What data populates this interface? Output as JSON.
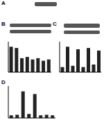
{
  "panel_labels": [
    "A",
    "B",
    "C",
    "D"
  ],
  "chart_data": [
    {
      "type": "bar",
      "categories": [
        null,
        null,
        null,
        null,
        null,
        null,
        null,
        null
      ],
      "values": [
        1.0,
        0.95,
        0.55,
        0.6,
        0.5,
        0.55,
        0.45,
        0.5
      ],
      "color": "#222222",
      "ylim": [
        0,
        1.2
      ],
      "yticks": [
        0,
        0.4,
        0.8,
        1.2
      ],
      "grid": false,
      "tick_labels": false
    },
    {
      "type": "bar",
      "categories": [
        null,
        null,
        null,
        null,
        null,
        null,
        null,
        null
      ],
      "values": [
        0.2,
        1.0,
        0.25,
        0.9,
        0.2,
        0.95,
        0.3,
        0.85
      ],
      "color": "#222222",
      "ylim": [
        0,
        1.2
      ],
      "yticks": [
        0,
        0.4,
        0.8,
        1.2
      ],
      "grid": false,
      "tick_labels": false
    },
    {
      "type": "bar",
      "categories": [
        null,
        null,
        null,
        null,
        null,
        null,
        null,
        null
      ],
      "values": [
        0.1,
        0.12,
        1.0,
        0.15,
        0.9,
        0.1,
        0.12,
        0.1
      ],
      "color": "#222222",
      "ylim": [
        0,
        1.2
      ],
      "yticks": [
        0,
        0.4,
        0.8,
        1.2
      ],
      "grid": false,
      "tick_labels": false
    }
  ]
}
